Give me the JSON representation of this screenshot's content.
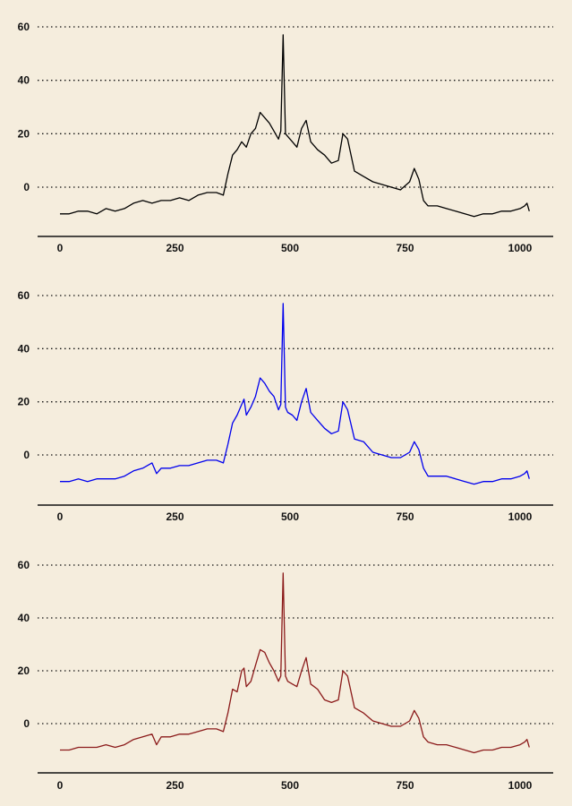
{
  "chart_data": [
    {
      "type": "line",
      "title": "",
      "xlabel": "",
      "ylabel": "",
      "xlim": [
        0,
        1023
      ],
      "ylim": [
        -15,
        63
      ],
      "xticks": [
        "0",
        "250",
        "500",
        "750",
        "1000"
      ],
      "yticks": [
        "0",
        "20",
        "40",
        "60"
      ],
      "grid": "horizontal dotted",
      "color": "#000000",
      "series": [
        {
          "x": [
            0,
            20,
            40,
            60,
            80,
            100,
            120,
            140,
            160,
            180,
            200,
            220,
            240,
            260,
            280,
            300,
            320,
            340,
            355,
            365,
            375,
            385,
            395,
            405,
            415,
            425,
            435,
            445,
            455,
            465,
            475,
            480,
            485,
            490,
            495,
            505,
            515,
            525,
            535,
            545,
            560,
            575,
            590,
            605,
            615,
            625,
            640,
            660,
            680,
            700,
            720,
            740,
            760,
            770,
            780,
            790,
            800,
            820,
            840,
            860,
            880,
            900,
            920,
            940,
            960,
            980,
            1000,
            1010,
            1015,
            1020
          ],
          "y": [
            -10,
            -10,
            -9,
            -9,
            -10,
            -8,
            -9,
            -8,
            -6,
            -5,
            -6,
            -5,
            -5,
            -4,
            -5,
            -3,
            -2,
            -2,
            -3,
            5,
            12,
            14,
            17,
            15,
            20,
            22,
            28,
            26,
            24,
            21,
            18,
            21,
            57,
            20,
            19,
            17,
            15,
            22,
            25,
            17,
            14,
            12,
            9,
            10,
            20,
            18,
            6,
            4,
            2,
            1,
            0,
            -1,
            2,
            7,
            3,
            -5,
            -7,
            -7,
            -8,
            -9,
            -10,
            -11,
            -10,
            -10,
            -9,
            -9,
            -8,
            -7,
            -6,
            -9
          ]
        }
      ]
    },
    {
      "type": "line",
      "title": "",
      "xlabel": "",
      "ylabel": "",
      "xlim": [
        0,
        1023
      ],
      "ylim": [
        -15,
        63
      ],
      "xticks": [
        "0",
        "250",
        "500",
        "750",
        "1000"
      ],
      "yticks": [
        "0",
        "20",
        "40",
        "60"
      ],
      "grid": "horizontal dotted",
      "color": "#0000ee",
      "series": [
        {
          "x": [
            0,
            20,
            40,
            60,
            80,
            100,
            120,
            140,
            160,
            180,
            200,
            210,
            220,
            240,
            260,
            280,
            300,
            320,
            340,
            355,
            365,
            375,
            385,
            395,
            400,
            405,
            415,
            425,
            435,
            445,
            455,
            465,
            475,
            480,
            485,
            490,
            495,
            505,
            515,
            525,
            535,
            545,
            560,
            575,
            590,
            605,
            615,
            625,
            640,
            660,
            680,
            700,
            720,
            740,
            760,
            770,
            780,
            790,
            800,
            820,
            840,
            860,
            880,
            900,
            920,
            940,
            960,
            980,
            1000,
            1010,
            1015,
            1020
          ],
          "y": [
            -10,
            -10,
            -9,
            -10,
            -9,
            -9,
            -9,
            -8,
            -6,
            -5,
            -3,
            -7,
            -5,
            -5,
            -4,
            -4,
            -3,
            -2,
            -2,
            -3,
            4,
            12,
            15,
            19,
            21,
            15,
            18,
            22,
            29,
            27,
            24,
            22,
            17,
            19,
            57,
            18,
            16,
            15,
            13,
            20,
            25,
            16,
            13,
            10,
            8,
            9,
            20,
            17,
            6,
            5,
            1,
            0,
            -1,
            -1,
            1,
            5,
            2,
            -5,
            -8,
            -8,
            -8,
            -9,
            -10,
            -11,
            -10,
            -10,
            -9,
            -9,
            -8,
            -7,
            -6,
            -9
          ]
        }
      ]
    },
    {
      "type": "line",
      "title": "",
      "xlabel": "",
      "ylabel": "",
      "xlim": [
        0,
        1023
      ],
      "ylim": [
        -15,
        63
      ],
      "xticks": [
        "0",
        "250",
        "500",
        "750",
        "1000"
      ],
      "yticks": [
        "0",
        "20",
        "40",
        "60"
      ],
      "grid": "horizontal dotted",
      "color": "#8b1a1a",
      "series": [
        {
          "x": [
            0,
            20,
            40,
            60,
            80,
            100,
            120,
            140,
            160,
            180,
            200,
            210,
            220,
            240,
            260,
            280,
            300,
            320,
            340,
            355,
            365,
            375,
            385,
            395,
            400,
            405,
            415,
            425,
            435,
            445,
            455,
            465,
            475,
            480,
            485,
            490,
            495,
            505,
            515,
            525,
            535,
            545,
            560,
            575,
            590,
            605,
            615,
            625,
            640,
            660,
            680,
            700,
            720,
            740,
            760,
            770,
            780,
            790,
            800,
            820,
            840,
            860,
            880,
            900,
            920,
            940,
            960,
            980,
            1000,
            1010,
            1015,
            1020
          ],
          "y": [
            -10,
            -10,
            -9,
            -9,
            -9,
            -8,
            -9,
            -8,
            -6,
            -5,
            -4,
            -8,
            -5,
            -5,
            -4,
            -4,
            -3,
            -2,
            -2,
            -3,
            4,
            13,
            12,
            20,
            21,
            14,
            16,
            22,
            28,
            27,
            23,
            20,
            16,
            18,
            57,
            18,
            16,
            15,
            14,
            20,
            25,
            15,
            13,
            9,
            8,
            9,
            20,
            18,
            6,
            4,
            1,
            0,
            -1,
            -1,
            1,
            5,
            2,
            -5,
            -7,
            -8,
            -8,
            -9,
            -10,
            -11,
            -10,
            -10,
            -9,
            -9,
            -8,
            -7,
            -6,
            -9
          ]
        }
      ]
    }
  ]
}
